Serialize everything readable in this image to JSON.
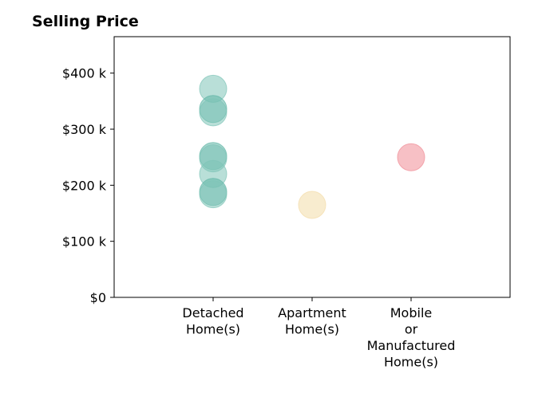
{
  "chart_data": {
    "type": "scatter",
    "title": "Selling Price",
    "xlabel": "",
    "ylabel": "",
    "categories": [
      "Detached\nHome(s)",
      "Apartment\nHome(s)",
      "Mobile\nor\nManufactured\nHome(s)"
    ],
    "ylim": [
      0,
      465000
    ],
    "yticks": [
      0,
      100000,
      200000,
      300000,
      400000
    ],
    "ytick_labels": [
      "$0",
      "$100 k",
      "$200 k",
      "$300 k",
      "$400 k"
    ],
    "grid": false,
    "points": [
      {
        "category": 0,
        "y": 372000,
        "color": "#7fc4b8"
      },
      {
        "category": 0,
        "y": 336000,
        "color": "#5fb5a5"
      },
      {
        "category": 0,
        "y": 330000,
        "color": "#7fc4b8"
      },
      {
        "category": 0,
        "y": 252000,
        "color": "#5fb5a5"
      },
      {
        "category": 0,
        "y": 248000,
        "color": "#7fc4b8"
      },
      {
        "category": 0,
        "y": 220000,
        "color": "#7fc4b8"
      },
      {
        "category": 0,
        "y": 188000,
        "color": "#5fb5a5"
      },
      {
        "category": 0,
        "y": 184000,
        "color": "#7fc4b8"
      },
      {
        "category": 1,
        "y": 165000,
        "color": "#f3dca8"
      },
      {
        "category": 2,
        "y": 250000,
        "color": "#f08c96"
      }
    ]
  }
}
